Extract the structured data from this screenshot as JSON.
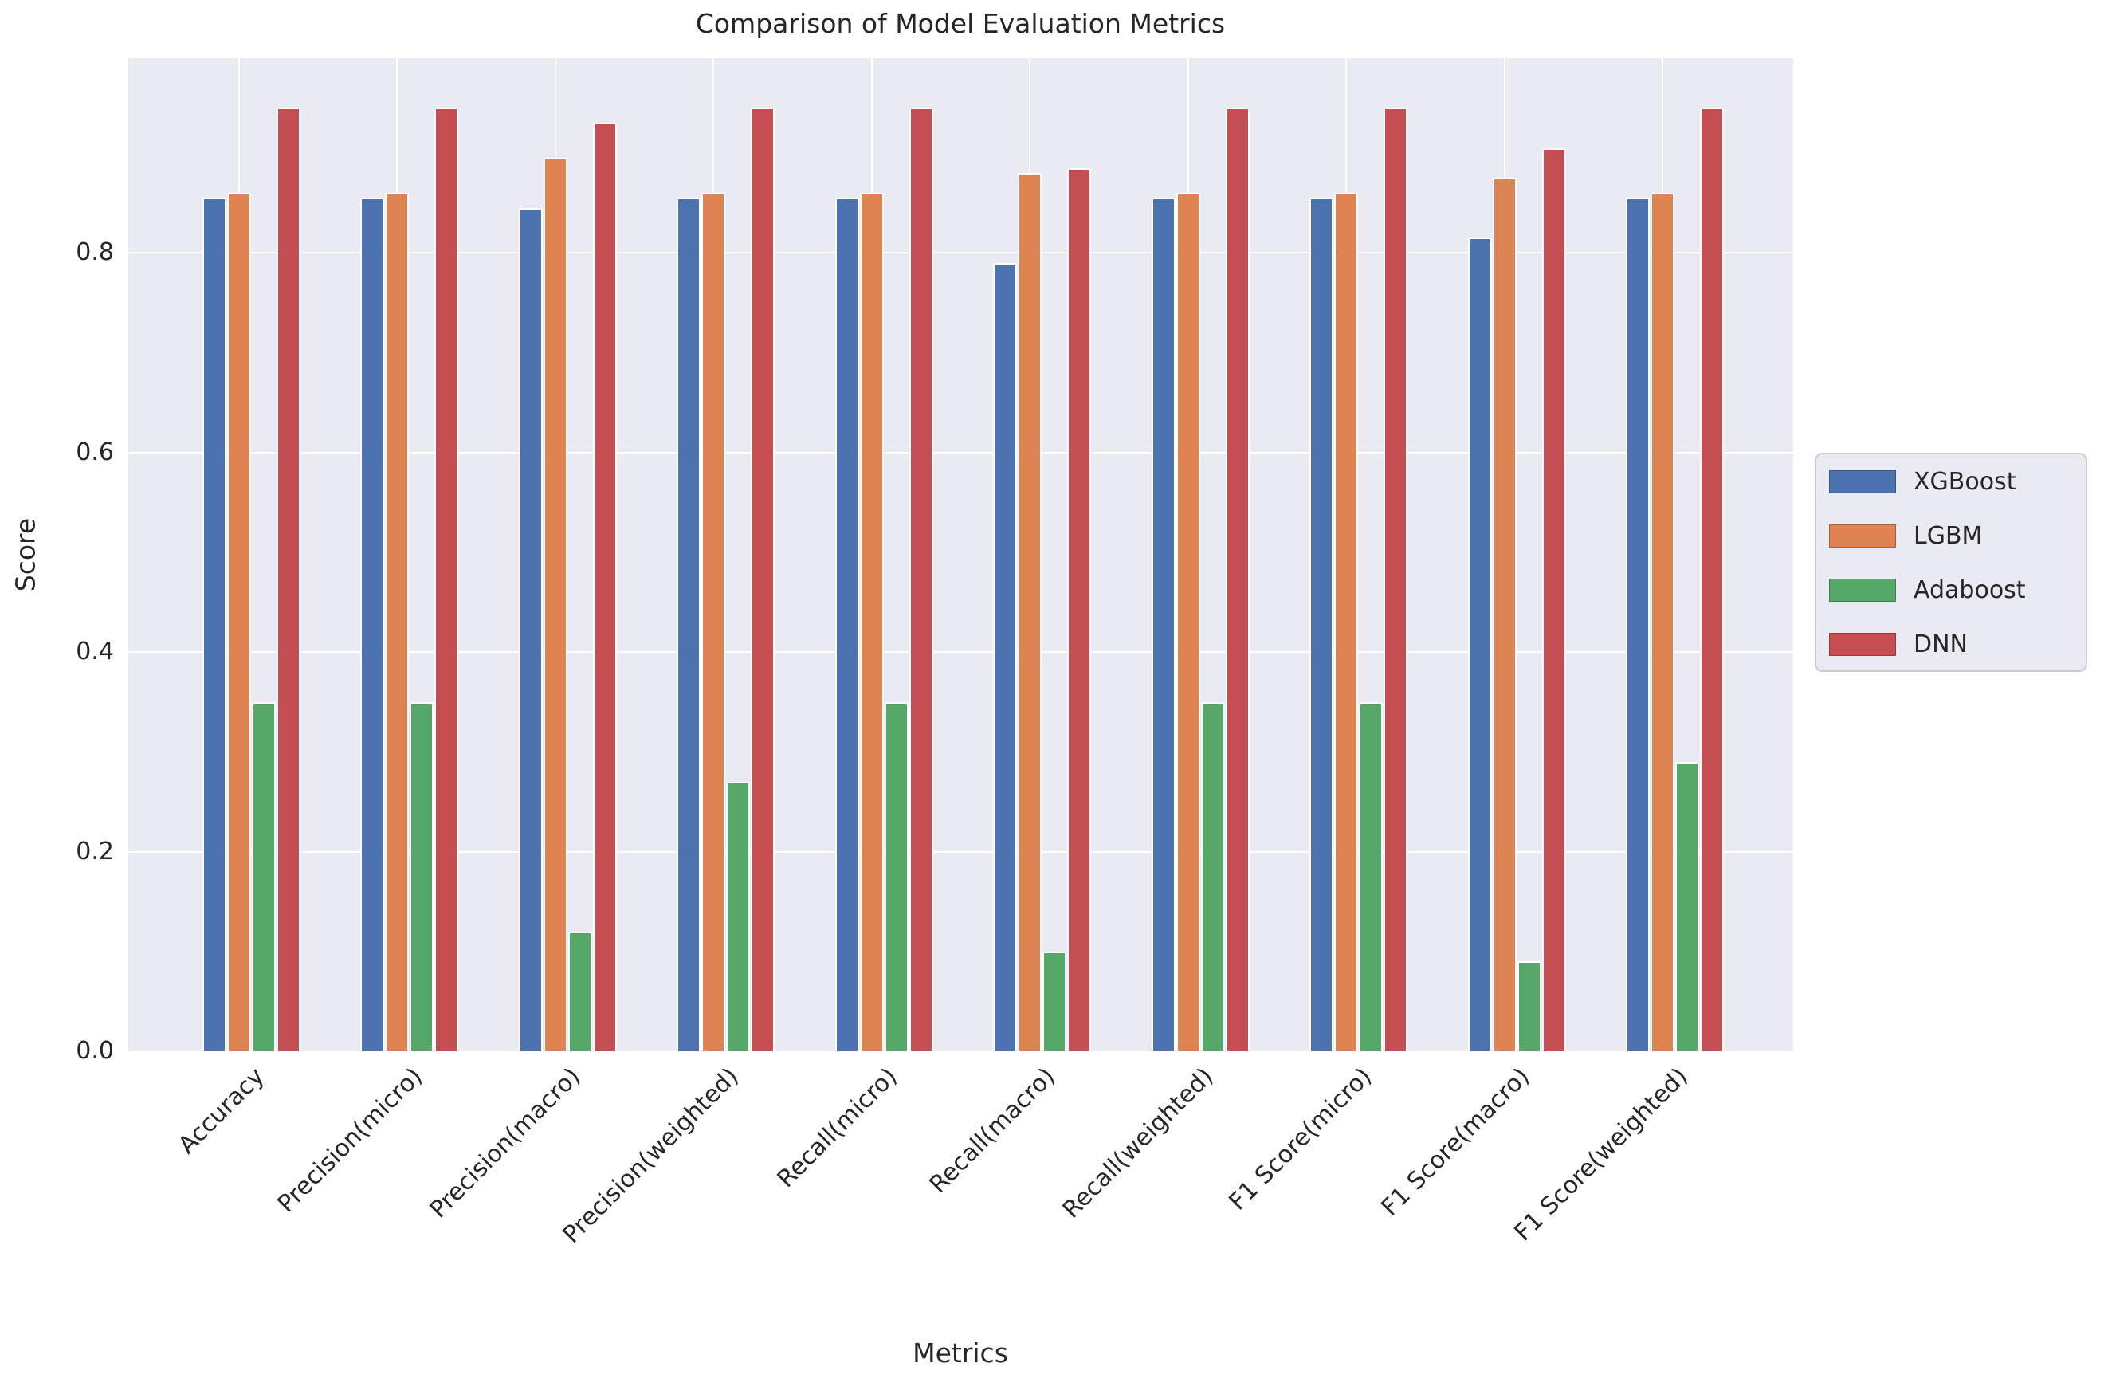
{
  "title": "Comparison of Model Evaluation Metrics",
  "chart_data": {
    "type": "bar",
    "title": "Comparison of Model Evaluation Metrics",
    "xlabel": "Metrics",
    "ylabel": "Score",
    "categories": [
      "Accuracy",
      "Precision(micro)",
      "Precision(macro)",
      "Precision(weighted)",
      "Recall(micro)",
      "Recall(macro)",
      "Recall(weighted)",
      "F1 Score(micro)",
      "F1 Score(macro)",
      "F1 Score(weighted)"
    ],
    "series": [
      {
        "name": "XGBoost",
        "color": "#4C72B0",
        "values": [
          0.855,
          0.855,
          0.845,
          0.855,
          0.855,
          0.79,
          0.855,
          0.855,
          0.815,
          0.855
        ]
      },
      {
        "name": "LGBM",
        "color": "#DD8452",
        "values": [
          0.86,
          0.86,
          0.895,
          0.86,
          0.86,
          0.88,
          0.86,
          0.86,
          0.875,
          0.86
        ]
      },
      {
        "name": "Adaboost",
        "color": "#55A868",
        "values": [
          0.35,
          0.35,
          0.12,
          0.27,
          0.35,
          0.1,
          0.35,
          0.35,
          0.09,
          0.29
        ]
      },
      {
        "name": "DNN",
        "color": "#C44E52",
        "values": [
          0.945,
          0.945,
          0.93,
          0.945,
          0.945,
          0.885,
          0.945,
          0.945,
          0.905,
          0.945
        ]
      }
    ],
    "yticks": [
      0.0,
      0.2,
      0.4,
      0.6,
      0.8
    ],
    "ytick_labels": [
      "0.0",
      "0.2",
      "0.4",
      "0.6",
      "0.8"
    ],
    "ylim": [
      0,
      0.995
    ],
    "grid": true,
    "legend_position": "right",
    "plot_bg": "#EAEAF2",
    "grid_color": "#FFFFFF",
    "text_color": "#262626"
  }
}
